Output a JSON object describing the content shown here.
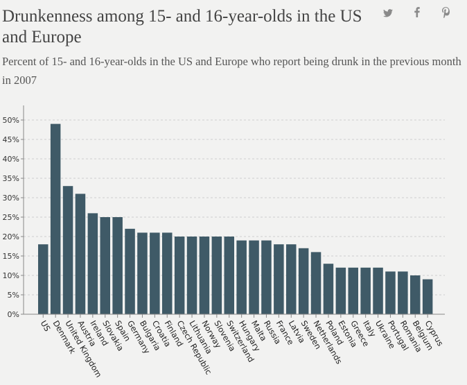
{
  "header": {
    "title": "Drunkenness among 15- and 16-year-olds in the US and Europe",
    "subtitle": "Percent of 15- and 16-year-olds in the US and Europe who report being drunk in the previous month in 2007"
  },
  "social": [
    {
      "name": "twitter-icon",
      "glyph": "🐦"
    },
    {
      "name": "facebook-icon",
      "glyph": "f"
    },
    {
      "name": "pinterest-icon",
      "glyph": "p"
    }
  ],
  "colors": {
    "bar": "#3f5a67",
    "grid": "#cfcfcf",
    "axis": "#888888"
  },
  "chart_data": {
    "type": "bar",
    "title": "Drunkenness among 15- and 16-year-olds in the US and Europe",
    "subtitle": "Percent of 15- and 16-year-olds in the US and Europe who report being drunk in the previous month in 2007",
    "xlabel": "",
    "ylabel": "",
    "ylim": [
      0,
      50
    ],
    "yticks": [
      "0%",
      "5%",
      "10%",
      "15%",
      "20%",
      "25%",
      "30%",
      "35%",
      "40%",
      "45%",
      "50%"
    ],
    "ytick_values": [
      0,
      5,
      10,
      15,
      20,
      25,
      30,
      35,
      40,
      45,
      50
    ],
    "grid": true,
    "categories": [
      "US",
      "Denmark",
      "United Kingdom",
      "Austria",
      "Ireland",
      "Slovakia",
      "Spain",
      "Germany",
      "Bulgaria",
      "Croatia",
      "Finland",
      "Czech Republic",
      "Lithuania",
      "Norway",
      "Slovenia",
      "Switzerland",
      "Hungary",
      "Malta",
      "Russia",
      "France",
      "Latvia",
      "Sweden",
      "Netherlands",
      "Poland",
      "Estonia",
      "Greece",
      "Italy",
      "Ukraine",
      "Portugal",
      "Romania",
      "Belgium",
      "Cyprus"
    ],
    "values": [
      18,
      49,
      33,
      31,
      26,
      25,
      25,
      22,
      21,
      21,
      21,
      20,
      20,
      20,
      20,
      20,
      19,
      19,
      19,
      18,
      18,
      17,
      16,
      13,
      12,
      12,
      12,
      12,
      11,
      11,
      10,
      9
    ]
  }
}
